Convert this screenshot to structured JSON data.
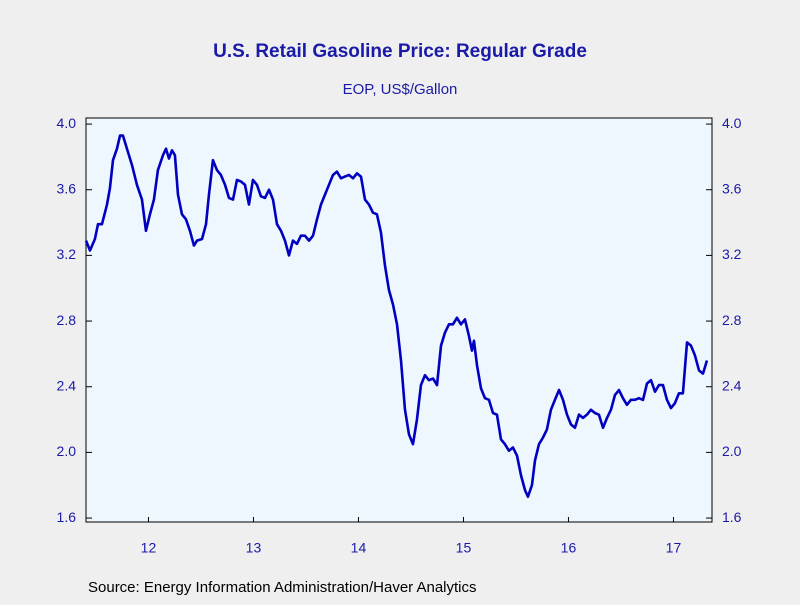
{
  "chart_data": {
    "type": "line",
    "title": "U.S. Retail Gasoline Price: Regular Grade",
    "subtitle": "EOP, US$/Gallon",
    "source": "Source:  Energy Information Administration/Haver Analytics",
    "xlim": [
      11.905,
      17.867
    ],
    "ylim": [
      1.576,
      4.037
    ],
    "xticks": [
      {
        "value": 12.5,
        "label": "12"
      },
      {
        "value": 13.5,
        "label": "13"
      },
      {
        "value": 14.5,
        "label": "14"
      },
      {
        "value": 15.5,
        "label": "15"
      },
      {
        "value": 16.5,
        "label": "16"
      },
      {
        "value": 17.5,
        "label": "17"
      }
    ],
    "yticks": [
      {
        "value": 4,
        "label": "4.0"
      },
      3.6,
      3.2,
      2.8,
      2.4,
      {
        "value": 2,
        "label": "2.0"
      },
      1.6
    ],
    "series": [
      {
        "color": "#0000c0",
        "x": [
          11.905,
          11.943,
          11.99,
          12.019,
          12.057,
          12.105,
          12.133,
          12.162,
          12.2,
          12.229,
          12.257,
          12.295,
          12.343,
          12.39,
          12.438,
          12.476,
          12.514,
          12.552,
          12.59,
          12.638,
          12.667,
          12.695,
          12.724,
          12.752,
          12.781,
          12.819,
          12.857,
          12.895,
          12.933,
          12.962,
          13.01,
          13.048,
          13.076,
          13.114,
          13.152,
          13.19,
          13.229,
          13.267,
          13.305,
          13.343,
          13.381,
          13.419,
          13.457,
          13.495,
          13.533,
          13.571,
          13.61,
          13.648,
          13.686,
          13.724,
          13.762,
          13.8,
          13.838,
          13.876,
          13.914,
          13.952,
          13.99,
          14.029,
          14.067,
          14.105,
          14.143,
          14.181,
          14.219,
          14.257,
          14.295,
          14.333,
          14.371,
          14.41,
          14.448,
          14.486,
          14.524,
          14.562,
          14.6,
          14.638,
          14.676,
          14.714,
          14.752,
          14.79,
          14.829,
          14.867,
          14.905,
          14.943,
          14.981,
          15.019,
          15.057,
          15.095,
          15.133,
          15.171,
          15.21,
          15.248,
          15.286,
          15.324,
          15.362,
          15.4,
          15.438,
          15.476,
          15.514,
          15.552,
          15.581,
          15.6,
          15.629,
          15.667,
          15.705,
          15.743,
          15.781,
          15.819,
          15.857,
          15.895,
          15.933,
          15.971,
          16.01,
          16.048,
          16.086,
          16.114,
          16.152,
          16.181,
          16.219,
          16.257,
          16.295,
          16.333,
          16.371,
          16.41,
          16.448,
          16.486,
          16.524,
          16.562,
          16.6,
          16.638,
          16.676,
          16.714,
          16.752,
          16.79,
          16.829,
          16.867,
          16.905,
          16.943,
          16.981,
          17.019,
          17.057,
          17.095,
          17.133,
          17.171,
          17.21,
          17.248,
          17.286,
          17.324,
          17.362,
          17.4,
          17.438,
          17.476,
          17.514,
          17.552,
          17.59,
          17.629,
          17.667,
          17.705,
          17.743,
          17.781,
          17.819
        ],
        "values": [
          3.29,
          3.23,
          3.3,
          3.39,
          3.39,
          3.51,
          3.61,
          3.78,
          3.85,
          3.93,
          3.93,
          3.85,
          3.75,
          3.63,
          3.54,
          3.35,
          3.45,
          3.54,
          3.72,
          3.81,
          3.85,
          3.79,
          3.84,
          3.81,
          3.57,
          3.45,
          3.42,
          3.35,
          3.26,
          3.29,
          3.3,
          3.39,
          3.57,
          3.78,
          3.72,
          3.69,
          3.63,
          3.55,
          3.54,
          3.66,
          3.65,
          3.63,
          3.51,
          3.66,
          3.63,
          3.56,
          3.55,
          3.6,
          3.54,
          3.39,
          3.35,
          3.29,
          3.2,
          3.29,
          3.27,
          3.32,
          3.32,
          3.29,
          3.32,
          3.42,
          3.51,
          3.57,
          3.63,
          3.69,
          3.71,
          3.67,
          3.68,
          3.69,
          3.67,
          3.7,
          3.68,
          3.54,
          3.51,
          3.46,
          3.45,
          3.34,
          3.14,
          2.99,
          2.9,
          2.78,
          2.56,
          2.26,
          2.11,
          2.05,
          2.2,
          2.41,
          2.47,
          2.44,
          2.45,
          2.41,
          2.65,
          2.73,
          2.78,
          2.78,
          2.82,
          2.78,
          2.81,
          2.71,
          2.62,
          2.68,
          2.53,
          2.39,
          2.33,
          2.32,
          2.24,
          2.23,
          2.08,
          2.05,
          2.01,
          2.03,
          1.98,
          1.86,
          1.77,
          1.73,
          1.8,
          1.95,
          2.05,
          2.09,
          2.14,
          2.26,
          2.32,
          2.38,
          2.32,
          2.23,
          2.17,
          2.15,
          2.23,
          2.21,
          2.23,
          2.26,
          2.24,
          2.23,
          2.15,
          2.21,
          2.26,
          2.35,
          2.38,
          2.33,
          2.29,
          2.32,
          2.32,
          2.33,
          2.32,
          2.42,
          2.44,
          2.37,
          2.41,
          2.41,
          2.32,
          2.27,
          2.3,
          2.36,
          2.36,
          2.67,
          2.65,
          2.59,
          2.5,
          2.48,
          2.56
        ]
      }
    ]
  }
}
